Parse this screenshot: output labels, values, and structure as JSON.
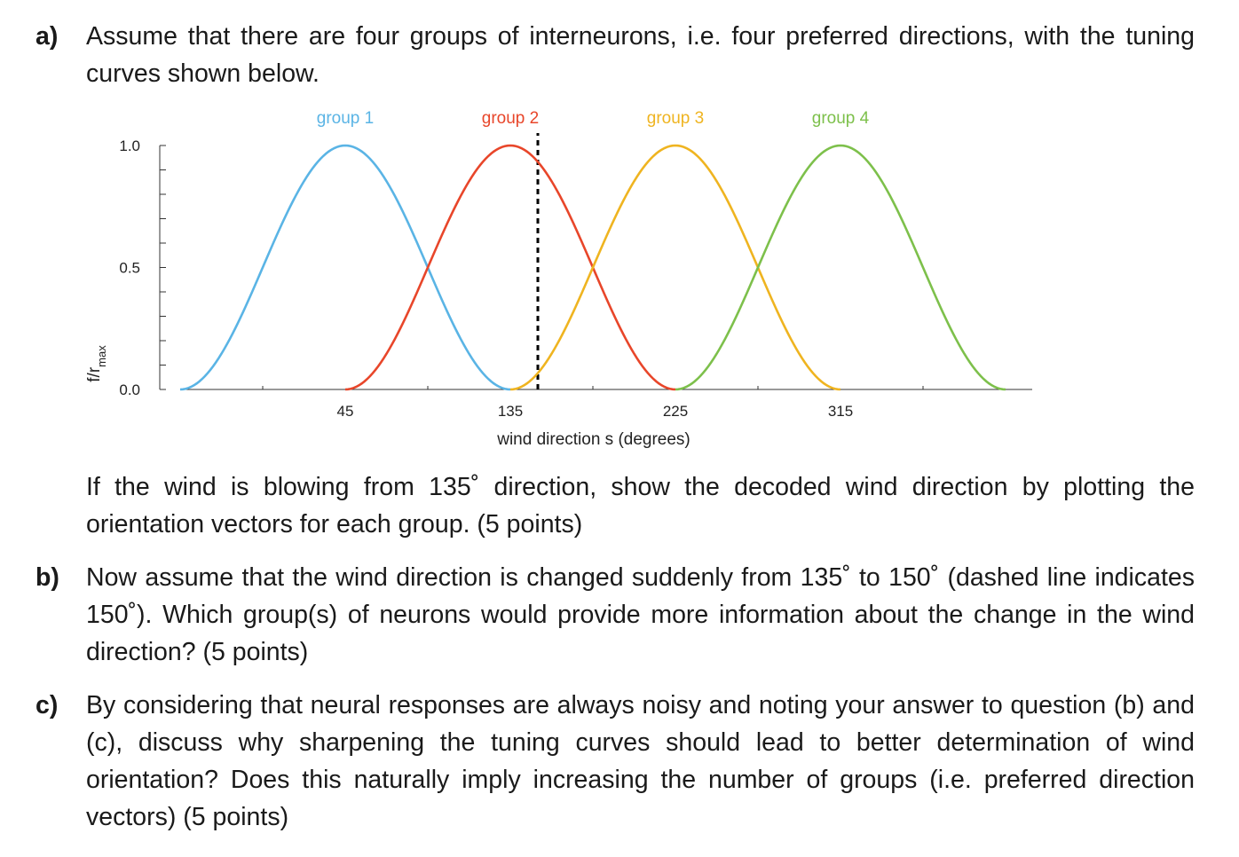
{
  "question_a": {
    "label": "a)",
    "text": "Assume that there are four groups of interneurons, i.e. four preferred directions, with the tuning curves shown below.",
    "followup": "If the wind is blowing from 135˚ direction, show the decoded wind direction by plotting the orientation vectors for each group. (5 points)"
  },
  "question_b": {
    "label": "b)",
    "text": "Now assume that the wind direction is changed suddenly from 135˚ to 150˚ (dashed line indicates 150˚). Which group(s) of neurons would provide more information about the change in the wind direction? (5 points)"
  },
  "question_c": {
    "label": "c)",
    "text": "By considering that neural responses are always noisy and noting your answer to question (b) and (c), discuss why sharpening the tuning curves should lead to better determination of wind orientation? Does this naturally imply increasing the number of groups (i.e. preferred direction vectors) (5 points)"
  },
  "chart_data": {
    "type": "line",
    "xlabel": "wind direction s (degrees)",
    "ylabel": "f/r",
    "ylabel_sub": "max",
    "xticks": [
      "45",
      "135",
      "225",
      "315"
    ],
    "yticks": [
      "0.0",
      "0.5",
      "1.0"
    ],
    "xlim": [
      -45,
      405
    ],
    "ylim": [
      0,
      1
    ],
    "dashed_line_x": 150,
    "series": [
      {
        "name": "group 1",
        "center": 45,
        "color": "#5ab4e5",
        "x": [
          -45,
          -22.5,
          0,
          22.5,
          45,
          67.5,
          90,
          112.5,
          135
        ],
        "y": [
          0.0,
          0.15,
          0.5,
          0.85,
          1.0,
          0.85,
          0.5,
          0.15,
          0.0
        ]
      },
      {
        "name": "group 2",
        "center": 135,
        "color": "#e8462a",
        "x": [
          45,
          67.5,
          90,
          112.5,
          135,
          157.5,
          180,
          202.5,
          225
        ],
        "y": [
          0.0,
          0.15,
          0.5,
          0.85,
          1.0,
          0.85,
          0.5,
          0.15,
          0.0
        ]
      },
      {
        "name": "group 3",
        "center": 225,
        "color": "#efb420",
        "x": [
          135,
          157.5,
          180,
          202.5,
          225,
          247.5,
          270,
          292.5,
          315
        ],
        "y": [
          0.0,
          0.15,
          0.5,
          0.85,
          1.0,
          0.85,
          0.5,
          0.15,
          0.0
        ]
      },
      {
        "name": "group 4",
        "center": 315,
        "color": "#7dc04b",
        "x": [
          225,
          247.5,
          270,
          292.5,
          315,
          337.5,
          360,
          382.5,
          405
        ],
        "y": [
          0.0,
          0.15,
          0.5,
          0.85,
          1.0,
          0.85,
          0.5,
          0.15,
          0.0
        ]
      }
    ]
  }
}
